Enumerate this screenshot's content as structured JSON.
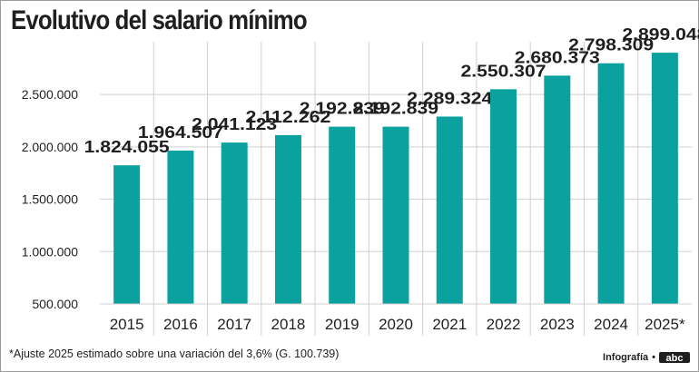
{
  "title": "Evolutivo del salario mínimo",
  "footnote": "*Ajuste 2025 estimado sobre una variación del 3,6% (G. 100.739)",
  "credit": "Infografía",
  "logo": "abc",
  "colors": {
    "bar": "#0aa19e",
    "grid": "#cfcfcf",
    "text": "#1f1f1f"
  },
  "chart_data": {
    "type": "bar",
    "title": "Evolutivo del salario mínimo",
    "categories": [
      "2015",
      "2016",
      "2017",
      "2018",
      "2019",
      "2020",
      "2021",
      "2022",
      "2023",
      "2024",
      "2025*"
    ],
    "values": [
      1824055,
      1964507,
      2041123,
      2112262,
      2192839,
      2192839,
      2289324,
      2550307,
      2680373,
      2798309,
      2899048
    ],
    "data_labels": [
      "1.824.055",
      "1.964.507",
      "2.041.123",
      "2.112.262",
      "2.192.839",
      "2.192.839",
      "2.289.324",
      "2.550.307",
      "2.680.373",
      "2.798.309",
      "2.899.048"
    ],
    "y_ticks": [
      500000,
      1000000,
      1500000,
      2000000,
      2500000
    ],
    "y_tick_labels": [
      "500.000",
      "1.000.000",
      "1.500.000",
      "2.000.000",
      "2.500.000"
    ],
    "ylim": [
      500000,
      2900000
    ],
    "xlabel": "",
    "ylabel": "",
    "grid": true
  }
}
